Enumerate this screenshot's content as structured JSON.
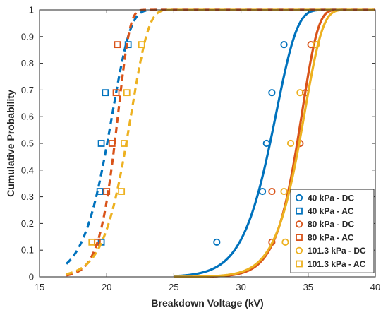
{
  "chart_data": {
    "type": "line",
    "xlabel": "Breakdown Voltage (kV)",
    "ylabel": "Cumulative Probability",
    "xlim": [
      15,
      40
    ],
    "ylim": [
      0,
      1
    ],
    "xticks": [
      15,
      20,
      25,
      30,
      35,
      40
    ],
    "yticks": [
      0,
      0.1,
      0.2,
      0.3,
      0.4,
      0.5,
      0.6,
      0.7,
      0.8,
      0.9,
      1
    ],
    "xtick_labels": [
      "15",
      "20",
      "25",
      "30",
      "35",
      "40"
    ],
    "ytick_labels": [
      "0",
      "0.1",
      "0.2",
      "0.3",
      "0.4",
      "0.5",
      "0.6",
      "0.7",
      "0.8",
      "0.9",
      "1"
    ],
    "grid": false,
    "legend_position": "bottom-right",
    "colors": {
      "blue": "#0072BD",
      "orange": "#D95319",
      "yellow": "#EDB120"
    },
    "series": [
      {
        "name": "40 kPa - DC",
        "color": "#0072BD",
        "line_style": "solid",
        "marker": "circle",
        "points": [
          [
            28.2,
            0.13
          ],
          [
            31.6,
            0.32
          ],
          [
            31.9,
            0.5
          ],
          [
            32.3,
            0.69
          ],
          [
            33.2,
            0.87
          ]
        ],
        "fit": {
          "scale": 32.7,
          "shape": 22,
          "x_range": [
            25,
            37.6
          ]
        }
      },
      {
        "name": "40 kPa - AC",
        "color": "#0072BD",
        "line_style": "dashed",
        "marker": "square",
        "points": [
          [
            19.6,
            0.13
          ],
          [
            19.5,
            0.32
          ],
          [
            19.6,
            0.5
          ],
          [
            19.9,
            0.69
          ],
          [
            21.6,
            0.87
          ]
        ],
        "fit": {
          "scale": 20.5,
          "shape": 16,
          "x_range": [
            17,
            40
          ]
        }
      },
      {
        "name": "80 kPa - DC",
        "color": "#D95319",
        "line_style": "solid",
        "marker": "circle",
        "points": [
          [
            32.3,
            0.13
          ],
          [
            32.3,
            0.32
          ],
          [
            34.4,
            0.5
          ],
          [
            34.8,
            0.69
          ],
          [
            35.2,
            0.87
          ]
        ],
        "fit": {
          "scale": 34.6,
          "shape": 30,
          "x_range": [
            25,
            37.6
          ]
        }
      },
      {
        "name": "80 kPa - AC",
        "color": "#D95319",
        "line_style": "dashed",
        "marker": "square",
        "points": [
          [
            19.3,
            0.13
          ],
          [
            20.0,
            0.32
          ],
          [
            20.4,
            0.5
          ],
          [
            20.7,
            0.69
          ],
          [
            20.8,
            0.87
          ]
        ],
        "fit": {
          "scale": 20.9,
          "shape": 25,
          "x_range": [
            17,
            40
          ]
        }
      },
      {
        "name": "101.3 kPa - DC",
        "color": "#EDB120",
        "line_style": "solid",
        "marker": "circle",
        "points": [
          [
            33.3,
            0.13
          ],
          [
            33.2,
            0.32
          ],
          [
            33.7,
            0.5
          ],
          [
            34.4,
            0.69
          ],
          [
            35.6,
            0.87
          ]
        ],
        "fit": {
          "scale": 34.8,
          "shape": 27,
          "x_range": [
            25,
            37.6
          ]
        }
      },
      {
        "name": "101.3 kPa - AC",
        "color": "#EDB120",
        "line_style": "dashed",
        "marker": "square",
        "points": [
          [
            18.9,
            0.13
          ],
          [
            21.1,
            0.32
          ],
          [
            21.3,
            0.5
          ],
          [
            21.5,
            0.69
          ],
          [
            22.6,
            0.87
          ]
        ],
        "fit": {
          "scale": 21.9,
          "shape": 18,
          "x_range": [
            17,
            40
          ]
        }
      }
    ]
  }
}
